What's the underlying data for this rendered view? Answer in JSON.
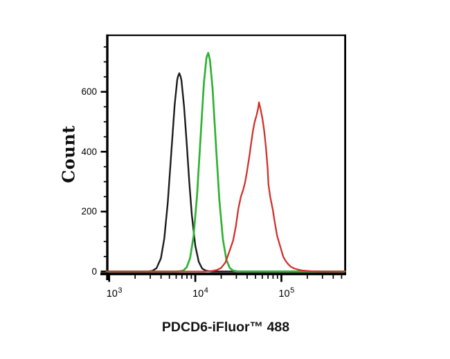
{
  "window": {
    "background_color": "#ffffff"
  },
  "chart_data": {
    "type": "line",
    "chart_kind": "flow-cytometry-histogram-overlay",
    "title": "",
    "xlabel": "PDCD6-iFluor™ 488",
    "ylabel": "Count",
    "x_scale": "log10",
    "x_range_log10": [
      2.97,
      5.74
    ],
    "y_range": [
      0,
      790
    ],
    "grid": "off",
    "legend": "none",
    "axis_color": "#000000",
    "x_major_ticks": [
      {
        "base": "10",
        "exponent": "3",
        "value": 1000
      },
      {
        "base": "10",
        "exponent": "4",
        "value": 10000
      },
      {
        "base": "10",
        "exponent": "5",
        "value": 100000
      }
    ],
    "x_minor_ticks_log10": [
      3.301,
      3.477,
      3.602,
      3.699,
      3.778,
      3.845,
      3.903,
      3.954,
      4.301,
      4.477,
      4.602,
      4.699,
      4.778,
      4.845,
      4.903,
      4.954,
      5.301,
      5.477,
      5.602,
      5.699
    ],
    "y_major_ticks": [
      {
        "label": "0",
        "value": 0
      },
      {
        "label": "200",
        "value": 200
      },
      {
        "label": "400",
        "value": 400
      },
      {
        "label": "600",
        "value": 600
      }
    ],
    "y_minor_tick_step": 50,
    "y_minor_tick_max": 750,
    "series": [
      {
        "name": "black-curve",
        "color": "#1b1b1b",
        "stroke_width": 2.4,
        "peak": {
          "x_log10": 3.81,
          "x_value": 6500,
          "count": 662
        },
        "points": [
          [
            2.97,
            0
          ],
          [
            3.4,
            0
          ],
          [
            3.45,
            0
          ],
          [
            3.5,
            2
          ],
          [
            3.55,
            11
          ],
          [
            3.6,
            44
          ],
          [
            3.64,
            110
          ],
          [
            3.68,
            229
          ],
          [
            3.72,
            393
          ],
          [
            3.76,
            557
          ],
          [
            3.79,
            640
          ],
          [
            3.8,
            652
          ],
          [
            3.814,
            662
          ],
          [
            3.83,
            650
          ],
          [
            3.84,
            636
          ],
          [
            3.87,
            550
          ],
          [
            3.9,
            428
          ],
          [
            3.93,
            299
          ],
          [
            3.96,
            188
          ],
          [
            4.0,
            86
          ],
          [
            4.04,
            32
          ],
          [
            4.08,
            10
          ],
          [
            4.12,
            3
          ],
          [
            4.16,
            1
          ],
          [
            4.2,
            0
          ],
          [
            5.74,
            0
          ]
        ]
      },
      {
        "name": "green-curve",
        "color": "#2fb133",
        "stroke_width": 2.7,
        "peak": {
          "x_log10": 4.15,
          "x_value": 14000,
          "count": 730
        },
        "points": [
          [
            2.97,
            0
          ],
          [
            3.74,
            0
          ],
          [
            3.78,
            0
          ],
          [
            3.82,
            1
          ],
          [
            3.86,
            3
          ],
          [
            3.9,
            14
          ],
          [
            3.94,
            45
          ],
          [
            3.98,
            118
          ],
          [
            4.02,
            253
          ],
          [
            4.06,
            443
          ],
          [
            4.1,
            629
          ],
          [
            4.13,
            715
          ],
          [
            4.15,
            730
          ],
          [
            4.17,
            707
          ],
          [
            4.2,
            613
          ],
          [
            4.24,
            423
          ],
          [
            4.28,
            237
          ],
          [
            4.32,
            109
          ],
          [
            4.36,
            40
          ],
          [
            4.4,
            12
          ],
          [
            4.44,
            3
          ],
          [
            4.48,
            1
          ],
          [
            4.52,
            0
          ],
          [
            5.74,
            0
          ]
        ]
      },
      {
        "name": "red-curve",
        "color": "#d1302a",
        "stroke_width": 2.3,
        "peak": {
          "x_log10": 4.74,
          "x_value": 55000,
          "count": 565
        },
        "points": [
          [
            2.97,
            0
          ],
          [
            4.05,
            0
          ],
          [
            4.1,
            0
          ],
          [
            4.15,
            1
          ],
          [
            4.2,
            2
          ],
          [
            4.25,
            5
          ],
          [
            4.3,
            12
          ],
          [
            4.35,
            30
          ],
          [
            4.4,
            70
          ],
          [
            4.44,
            104
          ],
          [
            4.47,
            150
          ],
          [
            4.5,
            210
          ],
          [
            4.53,
            250
          ],
          [
            4.56,
            276
          ],
          [
            4.58,
            300
          ],
          [
            4.6,
            333
          ],
          [
            4.63,
            390
          ],
          [
            4.65,
            430
          ],
          [
            4.67,
            470
          ],
          [
            4.69,
            500
          ],
          [
            4.71,
            520
          ],
          [
            4.73,
            545
          ],
          [
            4.74,
            565
          ],
          [
            4.76,
            540
          ],
          [
            4.78,
            510
          ],
          [
            4.8,
            470
          ],
          [
            4.82,
            415
          ],
          [
            4.84,
            345
          ],
          [
            4.85,
            290
          ],
          [
            4.87,
            250
          ],
          [
            4.9,
            207
          ],
          [
            4.92,
            170
          ],
          [
            4.95,
            120
          ],
          [
            4.97,
            100
          ],
          [
            5.0,
            70
          ],
          [
            5.02,
            50
          ],
          [
            5.05,
            35
          ],
          [
            5.08,
            24
          ],
          [
            5.11,
            16
          ],
          [
            5.15,
            10
          ],
          [
            5.2,
            6
          ],
          [
            5.25,
            3
          ],
          [
            5.35,
            1
          ],
          [
            5.45,
            0
          ],
          [
            5.74,
            0
          ]
        ]
      }
    ]
  }
}
